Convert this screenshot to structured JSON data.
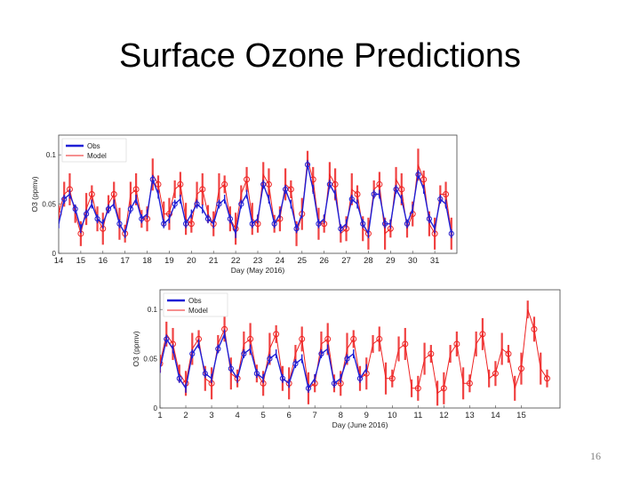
{
  "slide": {
    "title": "Surface Ozone Predictions",
    "page_number": "16"
  },
  "colors": {
    "obs": "#1f1fd6",
    "model": "#ee2222",
    "frame": "#444444"
  },
  "chart_data": [
    {
      "type": "line",
      "xlabel": "Day (May 2016)",
      "ylabel": "O3 (ppmv)",
      "xlim": [
        14,
        32
      ],
      "ylim": [
        0,
        0.12
      ],
      "yticks": [
        0,
        0.05,
        0.1
      ],
      "ytick_labels": [
        "0",
        "0.05",
        "0.1"
      ],
      "xticks": [
        14,
        15,
        16,
        17,
        18,
        19,
        20,
        21,
        22,
        23,
        24,
        25,
        26,
        27,
        28,
        29,
        30,
        31
      ],
      "legend": {
        "placement": "top-left",
        "entries": [
          "Obs",
          "Model"
        ]
      },
      "series": [
        {
          "name": "Obs",
          "x": [
            14.0,
            14.25,
            14.5,
            14.75,
            15.0,
            15.25,
            15.5,
            15.75,
            16.0,
            16.25,
            16.5,
            16.75,
            17.0,
            17.25,
            17.5,
            17.75,
            18.0,
            18.25,
            18.5,
            18.75,
            19.0,
            19.25,
            19.5,
            19.75,
            20.0,
            20.25,
            20.5,
            20.75,
            21.0,
            21.25,
            21.5,
            21.75,
            22.0,
            22.25,
            22.5,
            22.75,
            23.0,
            23.25,
            23.5,
            23.75,
            24.0,
            24.25,
            24.5,
            24.75,
            25.0,
            25.25,
            25.5,
            25.75,
            26.0,
            26.25,
            26.5,
            26.75,
            27.0,
            27.25,
            27.5,
            27.75,
            28.0,
            28.25,
            28.5,
            28.75,
            29.0,
            29.25,
            29.5,
            29.75,
            30.0,
            30.25,
            30.5,
            30.75,
            31.0,
            31.25,
            31.5,
            31.75
          ],
          "y": [
            0.03,
            0.055,
            0.06,
            0.045,
            0.025,
            0.04,
            0.05,
            0.035,
            0.03,
            0.045,
            0.05,
            0.03,
            0.02,
            0.045,
            0.055,
            0.035,
            0.04,
            0.075,
            0.06,
            0.03,
            0.035,
            0.05,
            0.055,
            0.03,
            0.04,
            0.05,
            0.045,
            0.035,
            0.03,
            0.05,
            0.055,
            0.035,
            0.02,
            0.05,
            0.06,
            0.03,
            0.035,
            0.07,
            0.055,
            0.03,
            0.04,
            0.065,
            0.05,
            0.025,
            0.04,
            0.09,
            0.065,
            0.03,
            0.035,
            0.07,
            0.06,
            0.025,
            0.03,
            0.055,
            0.05,
            0.03,
            0.02,
            0.06,
            0.06,
            0.03,
            0.03,
            0.065,
            0.055,
            0.03,
            0.045,
            0.08,
            0.065,
            0.035,
            0.025,
            0.055,
            0.05,
            0.02
          ]
        },
        {
          "name": "Model",
          "x": [
            14.0,
            14.25,
            14.5,
            14.75,
            15.0,
            15.25,
            15.5,
            15.75,
            16.0,
            16.25,
            16.5,
            16.75,
            17.0,
            17.25,
            17.5,
            17.75,
            18.0,
            18.25,
            18.5,
            18.75,
            19.0,
            19.25,
            19.5,
            19.75,
            20.0,
            20.25,
            20.5,
            20.75,
            21.0,
            21.25,
            21.5,
            21.75,
            22.0,
            22.25,
            22.5,
            22.75,
            23.0,
            23.25,
            23.5,
            23.75,
            24.0,
            24.25,
            24.5,
            24.75,
            25.0,
            25.25,
            25.5,
            25.75,
            26.0,
            26.25,
            26.5,
            26.75,
            27.0,
            27.25,
            27.5,
            27.75,
            28.0,
            28.25,
            28.5,
            28.75,
            29.0,
            29.25,
            29.5,
            29.75,
            30.0,
            30.25,
            30.5,
            30.75,
            31.0,
            31.25,
            31.5,
            31.75
          ],
          "y": [
            0.04,
            0.06,
            0.065,
            0.04,
            0.02,
            0.045,
            0.06,
            0.035,
            0.025,
            0.05,
            0.06,
            0.03,
            0.02,
            0.06,
            0.065,
            0.035,
            0.035,
            0.08,
            0.07,
            0.04,
            0.04,
            0.065,
            0.07,
            0.035,
            0.03,
            0.06,
            0.065,
            0.04,
            0.03,
            0.065,
            0.07,
            0.035,
            0.025,
            0.06,
            0.075,
            0.035,
            0.03,
            0.08,
            0.07,
            0.03,
            0.035,
            0.07,
            0.065,
            0.02,
            0.04,
            0.095,
            0.075,
            0.03,
            0.03,
            0.08,
            0.07,
            0.02,
            0.025,
            0.065,
            0.06,
            0.025,
            0.02,
            0.065,
            0.07,
            0.02,
            0.025,
            0.075,
            0.065,
            0.025,
            0.04,
            0.09,
            0.075,
            0.03,
            0.02,
            0.06,
            0.06,
            0.02
          ]
        }
      ]
    },
    {
      "type": "line",
      "xlabel": "Day (June 2016)",
      "ylabel": "O3 (ppmv)",
      "xlim": [
        1,
        16.5
      ],
      "ylim": [
        0,
        0.12
      ],
      "yticks": [
        0,
        0.05,
        0.1
      ],
      "ytick_labels": [
        "0",
        "0.05",
        "0.1"
      ],
      "xticks": [
        1,
        2,
        3,
        4,
        5,
        6,
        7,
        8,
        9,
        10,
        11,
        12,
        13,
        14,
        15
      ],
      "legend": {
        "placement": "top-left",
        "entries": [
          "Obs",
          "Model"
        ]
      },
      "series": [
        {
          "name": "Obs",
          "x": [
            1.0,
            1.25,
            1.5,
            1.75,
            2.0,
            2.25,
            2.5,
            2.75,
            3.0,
            3.25,
            3.5,
            3.75,
            4.0,
            4.25,
            4.5,
            4.75,
            5.0,
            5.25,
            5.5,
            5.75,
            6.0,
            6.25,
            6.5,
            6.75,
            7.0,
            7.25,
            7.5,
            7.75,
            8.0,
            8.25,
            8.5,
            8.75,
            9.0
          ],
          "y": [
            0.04,
            0.07,
            0.06,
            0.03,
            0.02,
            0.055,
            0.065,
            0.035,
            0.03,
            0.06,
            0.075,
            0.04,
            0.03,
            0.055,
            0.06,
            0.035,
            0.03,
            0.05,
            0.055,
            0.03,
            0.025,
            0.045,
            0.05,
            0.02,
            0.03,
            0.055,
            0.06,
            0.025,
            0.03,
            0.05,
            0.055,
            0.03,
            0.04
          ]
        },
        {
          "name": "Model",
          "x": [
            1.0,
            1.25,
            1.5,
            1.75,
            2.0,
            2.25,
            2.5,
            2.75,
            3.0,
            3.25,
            3.5,
            3.75,
            4.0,
            4.25,
            4.5,
            4.75,
            5.0,
            5.25,
            5.5,
            5.75,
            6.0,
            6.25,
            6.5,
            6.75,
            7.0,
            7.25,
            7.5,
            7.75,
            8.0,
            8.25,
            8.5,
            8.75,
            9.0,
            9.25,
            9.5,
            9.75,
            10.0,
            10.25,
            10.5,
            10.75,
            11.0,
            11.25,
            11.5,
            11.75,
            12.0,
            12.25,
            12.5,
            12.75,
            13.0,
            13.25,
            13.5,
            13.75,
            14.0,
            14.25,
            14.5,
            14.75,
            15.0,
            15.25,
            15.5,
            15.75,
            16.0
          ],
          "y": [
            0.045,
            0.075,
            0.065,
            0.035,
            0.025,
            0.06,
            0.07,
            0.03,
            0.025,
            0.065,
            0.08,
            0.035,
            0.03,
            0.065,
            0.07,
            0.035,
            0.025,
            0.06,
            0.075,
            0.03,
            0.025,
            0.055,
            0.07,
            0.02,
            0.025,
            0.065,
            0.07,
            0.025,
            0.025,
            0.06,
            0.07,
            0.03,
            0.035,
            0.065,
            0.07,
            0.03,
            0.03,
            0.06,
            0.065,
            0.02,
            0.02,
            0.05,
            0.055,
            0.015,
            0.02,
            0.055,
            0.065,
            0.025,
            0.025,
            0.065,
            0.075,
            0.03,
            0.035,
            0.06,
            0.055,
            0.02,
            0.04,
            0.1,
            0.08,
            0.04,
            0.03
          ]
        }
      ]
    }
  ]
}
